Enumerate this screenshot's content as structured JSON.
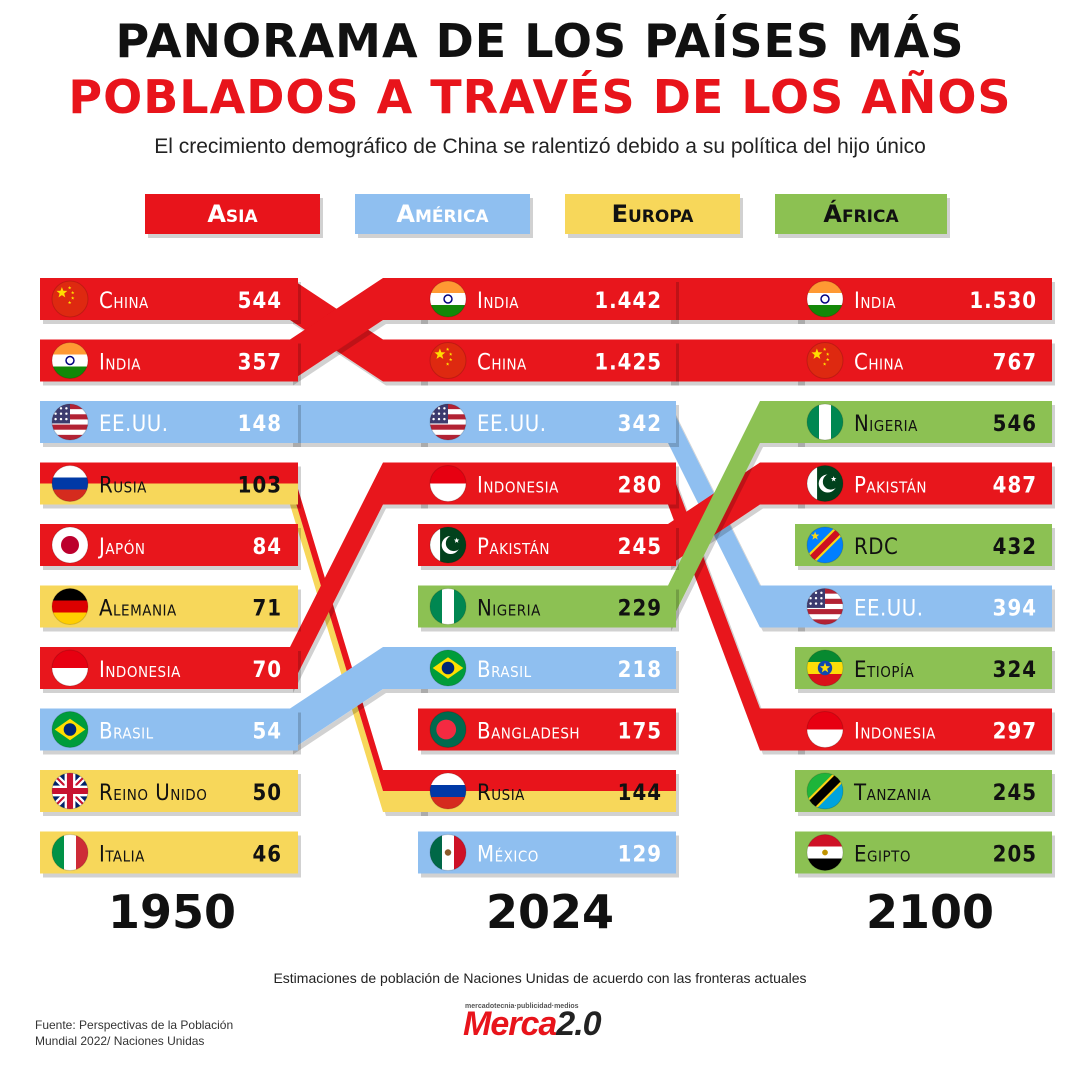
{
  "header": {
    "title_line1": "PANORAMA DE LOS PAÍSES MÁS",
    "title_line2": "POBLADOS A TRAVÉS DE LOS AÑOS",
    "subtitle": "El crecimiento demográfico de China se ralentizó debido a su política del hijo único"
  },
  "legend": [
    {
      "label": "Asia",
      "color": "#e8141b",
      "text_color": "#ffffff"
    },
    {
      "label": "América",
      "color": "#8fbff0",
      "text_color": "#ffffff"
    },
    {
      "label": "Europa",
      "color": "#f7d75a",
      "text_color": "#111111"
    },
    {
      "label": "África",
      "color": "#8cc152",
      "text_color": "#111111"
    }
  ],
  "chart_data": {
    "type": "bump",
    "unit": "millones",
    "columns": [
      "1950",
      "2024",
      "2100"
    ],
    "region_colors": {
      "Asia": "#e8141b",
      "América": "#8fbff0",
      "Europa": "#f7d75a",
      "África": "#8cc152"
    },
    "rankings": {
      "1950": [
        {
          "country": "China",
          "value": "544",
          "region": "Asia",
          "flag": "china-flag"
        },
        {
          "country": "India",
          "value": "357",
          "region": "Asia",
          "flag": "india-flag"
        },
        {
          "country": "EE.UU.",
          "value": "148",
          "region": "América",
          "flag": "usa-flag"
        },
        {
          "country": "Rusia",
          "value": "103",
          "region": "Asia/Europa",
          "flag": "russia-flag"
        },
        {
          "country": "Japón",
          "value": "84",
          "region": "Asia",
          "flag": "japan-flag"
        },
        {
          "country": "Alemania",
          "value": "71",
          "region": "Europa",
          "flag": "germany-flag"
        },
        {
          "country": "Indonesia",
          "value": "70",
          "region": "Asia",
          "flag": "indonesia-flag"
        },
        {
          "country": "Brasil",
          "value": "54",
          "region": "América",
          "flag": "brazil-flag"
        },
        {
          "country": "Reino Unido",
          "value": "50",
          "region": "Europa",
          "flag": "uk-flag"
        },
        {
          "country": "Italia",
          "value": "46",
          "region": "Europa",
          "flag": "italy-flag"
        }
      ],
      "2024": [
        {
          "country": "India",
          "value": "1.442",
          "region": "Asia",
          "flag": "india-flag"
        },
        {
          "country": "China",
          "value": "1.425",
          "region": "Asia",
          "flag": "china-flag"
        },
        {
          "country": "EE.UU.",
          "value": "342",
          "region": "América",
          "flag": "usa-flag"
        },
        {
          "country": "Indonesia",
          "value": "280",
          "region": "Asia",
          "flag": "indonesia-flag"
        },
        {
          "country": "Pakistán",
          "value": "245",
          "region": "Asia",
          "flag": "pakistan-flag"
        },
        {
          "country": "Nigeria",
          "value": "229",
          "region": "África",
          "flag": "nigeria-flag"
        },
        {
          "country": "Brasil",
          "value": "218",
          "region": "América",
          "flag": "brazil-flag"
        },
        {
          "country": "Bangladesh",
          "value": "175",
          "region": "Asia",
          "flag": "bangladesh-flag"
        },
        {
          "country": "Rusia",
          "value": "144",
          "region": "Asia/Europa",
          "flag": "russia-flag"
        },
        {
          "country": "México",
          "value": "129",
          "region": "América",
          "flag": "mexico-flag"
        }
      ],
      "2100": [
        {
          "country": "India",
          "value": "1.530",
          "region": "Asia",
          "flag": "india-flag"
        },
        {
          "country": "China",
          "value": "767",
          "region": "Asia",
          "flag": "china-flag"
        },
        {
          "country": "Nigeria",
          "value": "546",
          "region": "África",
          "flag": "nigeria-flag"
        },
        {
          "country": "Pakistán",
          "value": "487",
          "region": "Asia",
          "flag": "pakistan-flag"
        },
        {
          "country": "RDC",
          "value": "432",
          "region": "África",
          "flag": "drc-flag"
        },
        {
          "country": "EE.UU.",
          "value": "394",
          "region": "América",
          "flag": "usa-flag"
        },
        {
          "country": "Etiopía",
          "value": "324",
          "region": "África",
          "flag": "ethiopia-flag"
        },
        {
          "country": "Indonesia",
          "value": "297",
          "region": "Asia",
          "flag": "indonesia-flag"
        },
        {
          "country": "Tanzania",
          "value": "245",
          "region": "África",
          "flag": "tanzania-flag"
        },
        {
          "country": "Egipto",
          "value": "205",
          "region": "África",
          "flag": "egypt-flag"
        }
      ]
    },
    "connections": [
      {
        "from": [
          "1950",
          0
        ],
        "to": [
          "2024",
          1
        ],
        "region": "Asia"
      },
      {
        "from": [
          "1950",
          1
        ],
        "to": [
          "2024",
          0
        ],
        "region": "Asia"
      },
      {
        "from": [
          "1950",
          2
        ],
        "to": [
          "2024",
          2
        ],
        "region": "América"
      },
      {
        "from": [
          "1950",
          3
        ],
        "to": [
          "2024",
          8
        ],
        "region": "Asia/Europa"
      },
      {
        "from": [
          "1950",
          6
        ],
        "to": [
          "2024",
          3
        ],
        "region": "Asia"
      },
      {
        "from": [
          "1950",
          7
        ],
        "to": [
          "2024",
          6
        ],
        "region": "América"
      },
      {
        "from": [
          "2024",
          0
        ],
        "to": [
          "2100",
          0
        ],
        "region": "Asia"
      },
      {
        "from": [
          "2024",
          1
        ],
        "to": [
          "2100",
          1
        ],
        "region": "Asia"
      },
      {
        "from": [
          "2024",
          2
        ],
        "to": [
          "2100",
          5
        ],
        "region": "América"
      },
      {
        "from": [
          "2024",
          3
        ],
        "to": [
          "2100",
          7
        ],
        "region": "Asia"
      },
      {
        "from": [
          "2024",
          4
        ],
        "to": [
          "2100",
          3
        ],
        "region": "Asia"
      },
      {
        "from": [
          "2024",
          5
        ],
        "to": [
          "2100",
          2
        ],
        "region": "África"
      }
    ]
  },
  "years": [
    "1950",
    "2024",
    "2100"
  ],
  "footer": {
    "note": "Estimaciones de población de Naciones Unidas de acuerdo con las fronteras actuales",
    "source_line1": "Fuente: Perspectivas de la Población",
    "source_line2": "Mundial 2022/ Naciones Unidas",
    "logo_tagline": "mercadotecnia·publicidad·medios",
    "logo_main": "Merca",
    "logo_version": "2.0"
  }
}
